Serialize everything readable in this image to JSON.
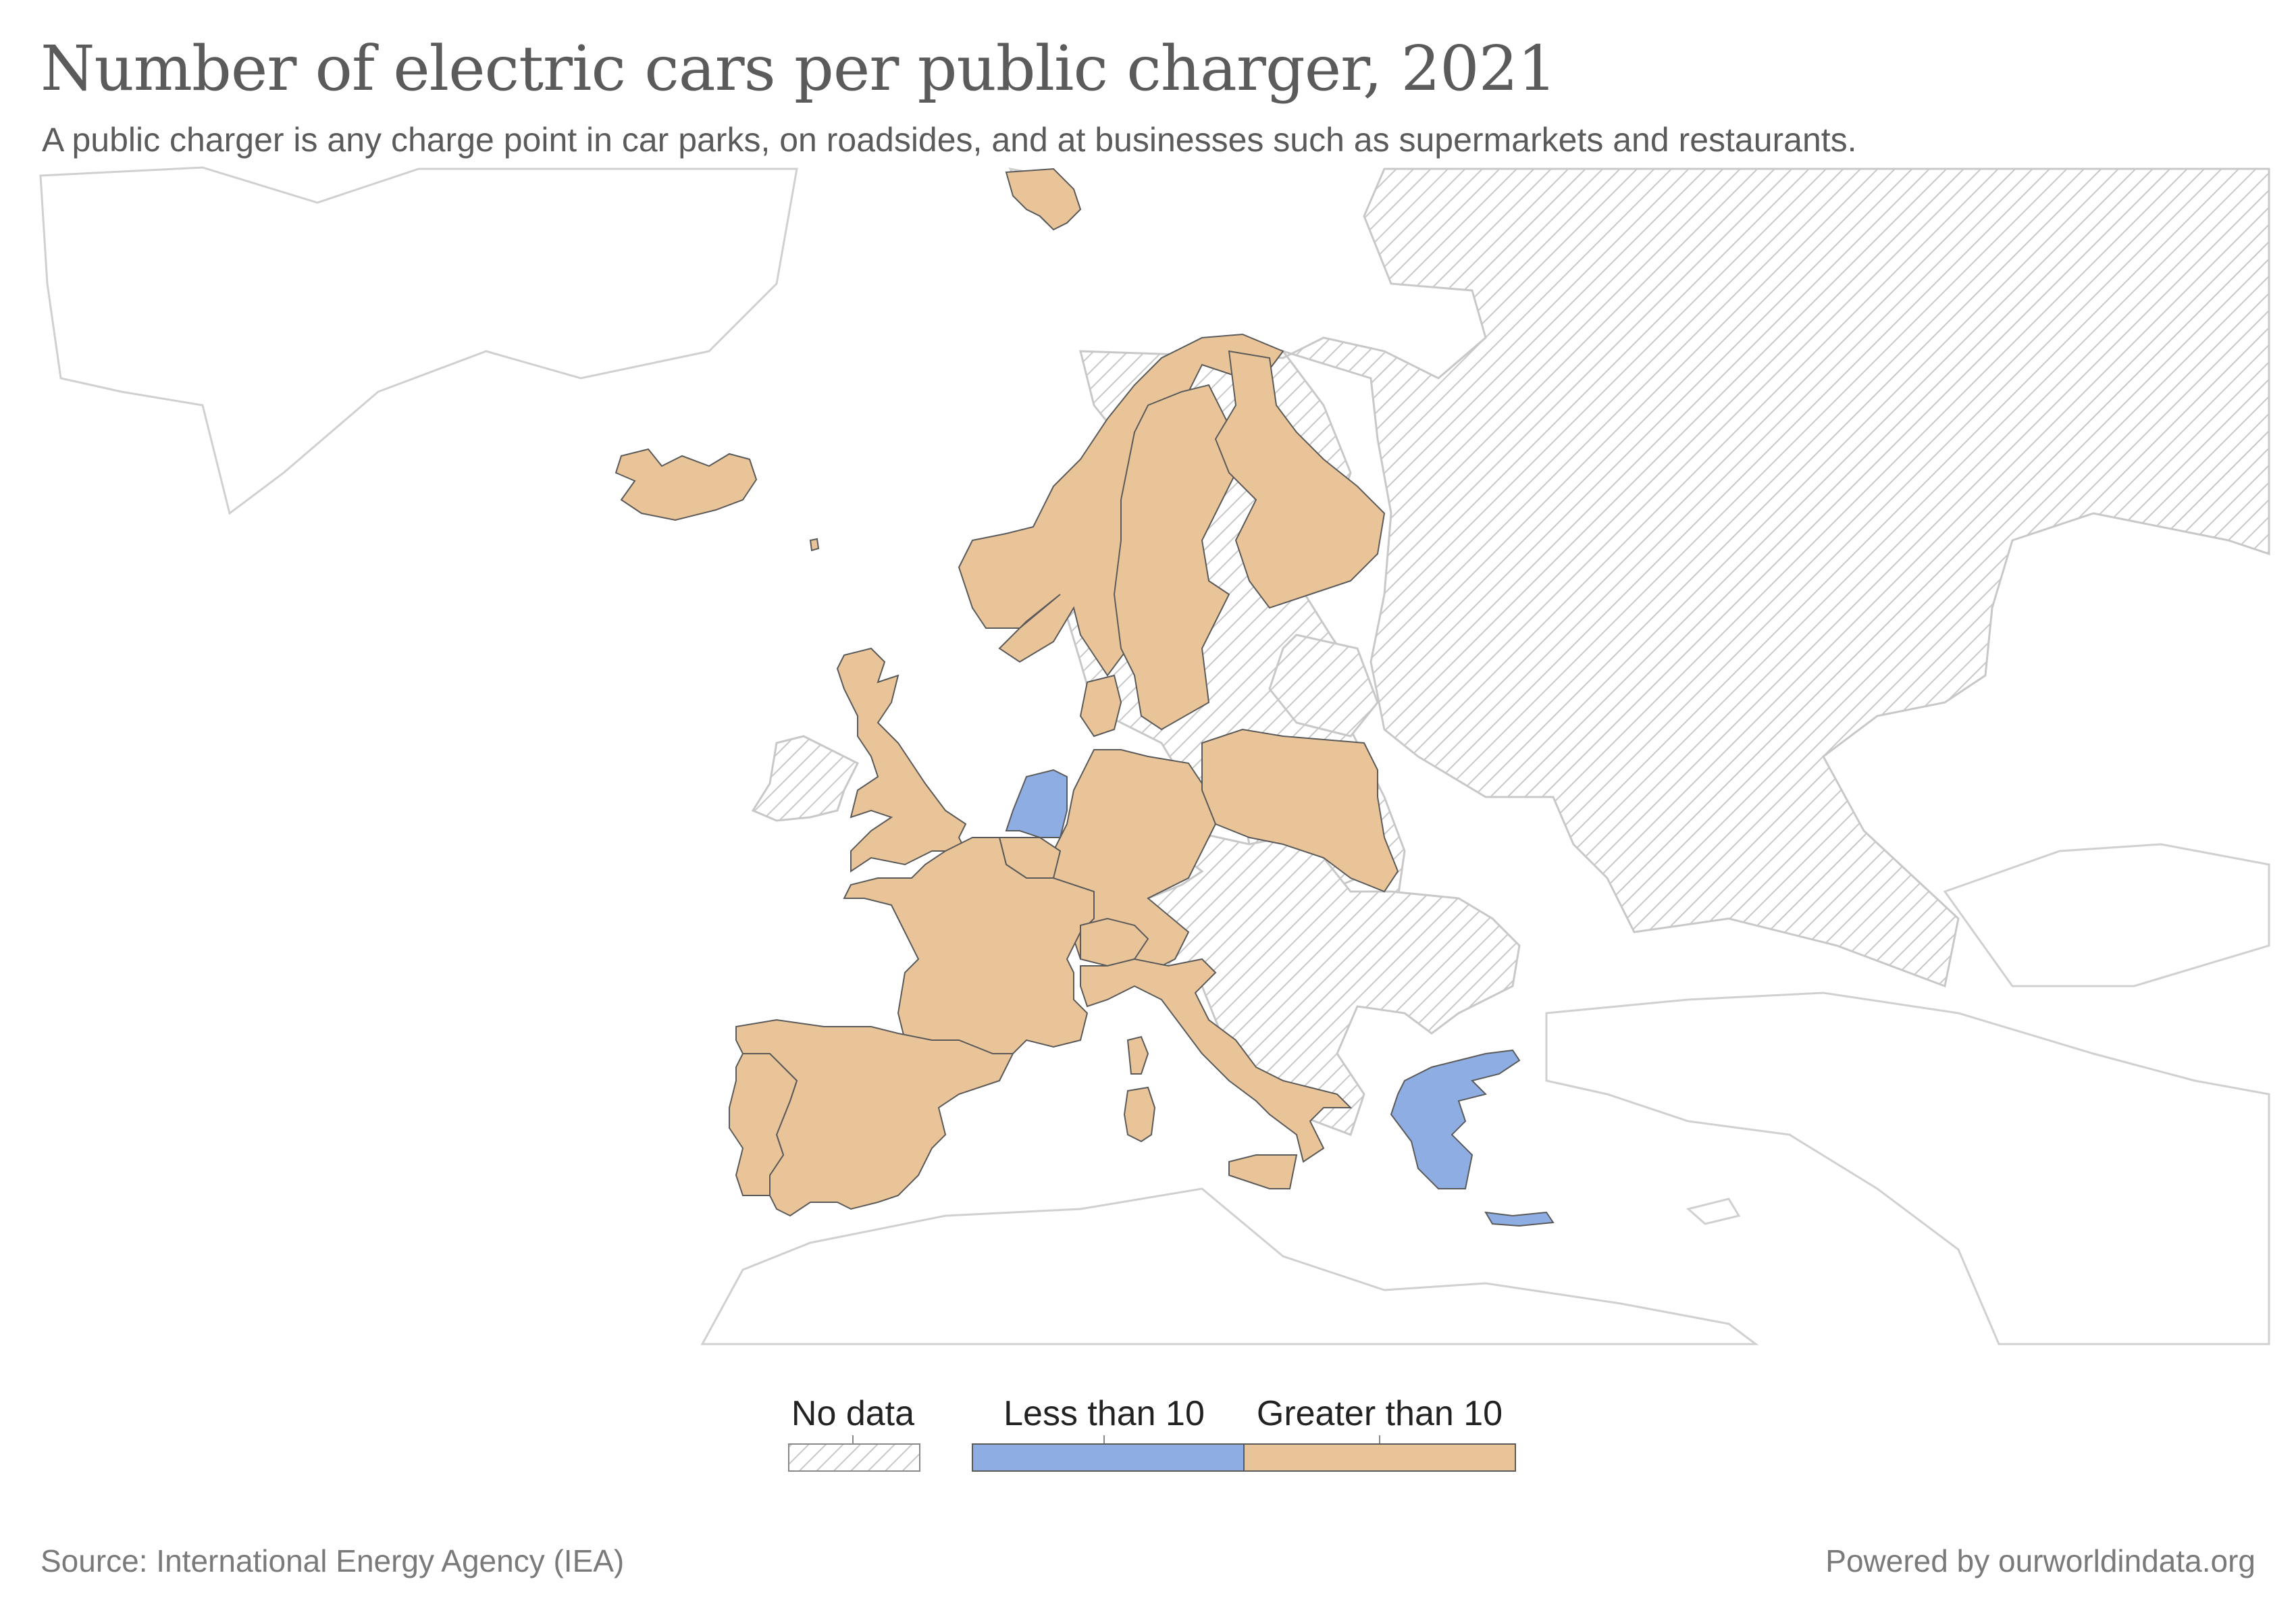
{
  "title": "Number of electric cars per public charger, 2021",
  "subtitle": "A public charger is any charge point in car parks, on roadsides, and at businesses such as supermarkets and restaurants.",
  "legend": {
    "no_data_label": "No data",
    "bins": [
      {
        "label": "Less than 10",
        "color": "#8eaee3"
      },
      {
        "label": "Greater than 10",
        "color": "#e9c498"
      }
    ]
  },
  "colors": {
    "less_than_10": "#8eaee3",
    "greater_than_10": "#e9c498",
    "no_data_hatch": "#c8c8c8",
    "border": "#5a5a5a",
    "background_country_border": "#d0d0d0"
  },
  "footer": {
    "source": "Source: International Energy Agency (IEA)",
    "powered_by": "Powered by ourworldindata.org"
  },
  "chart_data": {
    "type": "choropleth",
    "region": "Europe",
    "year": 2021,
    "categories": [
      "Less than 10",
      "Greater than 10",
      "No data"
    ],
    "countries": [
      {
        "name": "Netherlands",
        "category": "Less than 10"
      },
      {
        "name": "Greece",
        "category": "Less than 10"
      },
      {
        "name": "Iceland",
        "category": "Greater than 10"
      },
      {
        "name": "Norway",
        "category": "Greater than 10"
      },
      {
        "name": "Sweden",
        "category": "Greater than 10"
      },
      {
        "name": "Finland",
        "category": "Greater than 10"
      },
      {
        "name": "Denmark",
        "category": "Greater than 10"
      },
      {
        "name": "United Kingdom",
        "category": "Greater than 10"
      },
      {
        "name": "Germany",
        "category": "Greater than 10"
      },
      {
        "name": "Poland",
        "category": "Greater than 10"
      },
      {
        "name": "France",
        "category": "Greater than 10"
      },
      {
        "name": "Belgium",
        "category": "Greater than 10"
      },
      {
        "name": "Switzerland",
        "category": "Greater than 10"
      },
      {
        "name": "Italy",
        "category": "Greater than 10"
      },
      {
        "name": "Spain",
        "category": "Greater than 10"
      },
      {
        "name": "Portugal",
        "category": "Greater than 10"
      },
      {
        "name": "Ireland",
        "category": "No data"
      },
      {
        "name": "Russia",
        "category": "No data"
      },
      {
        "name": "Belarus",
        "category": "No data"
      },
      {
        "name": "Ukraine",
        "category": "No data"
      },
      {
        "name": "Baltic states",
        "category": "No data"
      },
      {
        "name": "Czechia",
        "category": "No data"
      },
      {
        "name": "Austria",
        "category": "No data"
      },
      {
        "name": "Hungary",
        "category": "No data"
      },
      {
        "name": "Romania",
        "category": "No data"
      },
      {
        "name": "Balkans",
        "category": "No data"
      }
    ]
  }
}
